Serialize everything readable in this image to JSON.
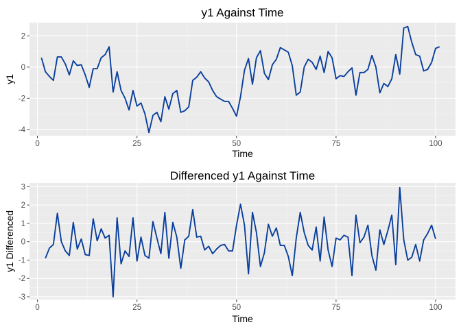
{
  "colors": {
    "panel_background": "#ebebeb",
    "major_grid": "#ffffff",
    "minor_grid": "#f5f5f5",
    "line": "#0a3f9c",
    "tick_mark": "#333333"
  },
  "chart_data": [
    {
      "type": "line",
      "title": "y1 Against Time",
      "xlabel": "Time",
      "ylabel": "y1",
      "xlim": [
        -2,
        105
      ],
      "ylim": [
        -4.4,
        2.85
      ],
      "xticks": [
        0,
        25,
        50,
        75,
        100
      ],
      "yticks": [
        -4,
        -2,
        0,
        2
      ],
      "x_start": 1,
      "series": [
        {
          "values": [
            0.6,
            -0.3,
            -0.6,
            -0.85,
            0.65,
            0.65,
            0.2,
            -0.5,
            0.4,
            0.1,
            0.15,
            -0.5,
            -1.3,
            -0.1,
            -0.1,
            0.6,
            0.8,
            1.3,
            -1.6,
            -0.3,
            -1.5,
            -2.0,
            -2.75,
            -1.5,
            -2.5,
            -2.3,
            -3.0,
            -4.2,
            -3.1,
            -2.9,
            -3.5,
            -1.9,
            -2.7,
            -1.7,
            -1.5,
            -2.9,
            -2.8,
            -2.55,
            -0.85,
            -0.65,
            -0.3,
            -0.7,
            -0.95,
            -1.5,
            -1.9,
            -2.05,
            -2.2,
            -2.2,
            -2.65,
            -3.15,
            -1.9,
            -0.2,
            0.55,
            -1.1,
            0.6,
            1.05,
            -0.4,
            -0.8,
            0.15,
            0.5,
            1.25,
            1.1,
            0.95,
            0.1,
            -1.8,
            -1.6,
            0.0,
            0.5,
            0.3,
            -0.15,
            0.7,
            -0.35,
            1.0,
            0.6,
            -0.75,
            -0.55,
            -0.6,
            -0.3,
            -0.05,
            -1.8,
            -0.35,
            -0.35,
            -0.15,
            0.75,
            0.0,
            -1.65,
            -1.05,
            -1.25,
            -0.75,
            0.8,
            -0.45,
            2.5,
            2.6,
            1.6,
            0.8,
            0.7,
            -0.25,
            -0.15,
            0.3,
            1.2,
            1.3
          ]
        }
      ]
    },
    {
      "type": "line",
      "title": "Differenced y1 Against Time",
      "xlabel": "Time",
      "ylabel": "y1 Differenced",
      "xlim": [
        -2,
        105
      ],
      "ylim": [
        -3.15,
        3.2
      ],
      "xticks": [
        0,
        25,
        50,
        75,
        100
      ],
      "yticks": [
        -3,
        -2,
        -1,
        0,
        1,
        2,
        3
      ],
      "x_start": 2,
      "series": [
        {
          "values": [
            -0.9,
            -0.35,
            -0.15,
            1.55,
            0.0,
            -0.5,
            -0.75,
            1.05,
            -0.4,
            0.15,
            -0.7,
            -0.75,
            1.25,
            0.05,
            0.7,
            0.2,
            0.35,
            -3.0,
            1.3,
            -1.2,
            -0.5,
            -0.8,
            1.3,
            -1.05,
            0.25,
            -0.75,
            -0.9,
            1.1,
            0.2,
            -0.65,
            1.6,
            -0.9,
            1.05,
            0.25,
            -1.45,
            0.1,
            0.3,
            1.75,
            0.25,
            0.3,
            -0.45,
            -0.25,
            -0.65,
            -0.4,
            -0.2,
            -0.15,
            -0.5,
            -0.5,
            0.9,
            2.05,
            0.9,
            -1.75,
            1.6,
            0.5,
            -1.35,
            -0.6,
            0.95,
            0.3,
            0.75,
            -0.2,
            -0.2,
            -0.8,
            -1.85,
            0.2,
            1.6,
            0.5,
            -0.2,
            -0.45,
            0.8,
            -1.05,
            1.35,
            -0.45,
            -1.35,
            0.2,
            0.1,
            0.35,
            0.25,
            -1.85,
            1.45,
            -0.05,
            0.25,
            0.9,
            -0.75,
            -1.55,
            0.65,
            -0.15,
            0.6,
            1.45,
            -1.25,
            2.95,
            0.1,
            -1.0,
            -0.85,
            -0.15,
            -1.05,
            0.1,
            0.45,
            0.9,
            0.15
          ]
        }
      ]
    }
  ]
}
